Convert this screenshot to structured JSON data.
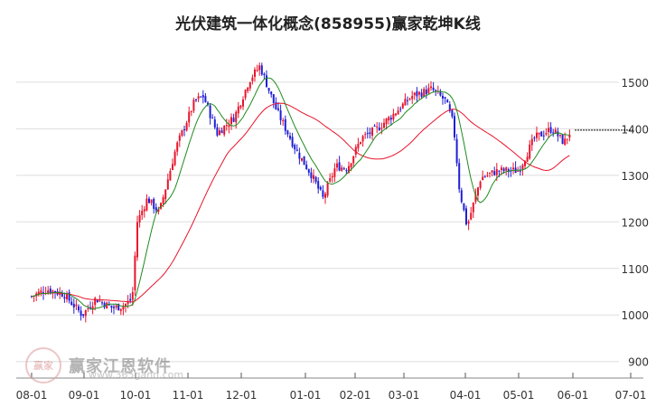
{
  "title": "光伏建筑一体化概念(858955)赢家乾坤K线",
  "watermark": {
    "name": "赢家江恩软件",
    "url": "www.365gann.com",
    "logo_text": "赢家"
  },
  "colors": {
    "up": "#e8142b",
    "down": "#1f1fd6",
    "ma_short": "#1f8a1f",
    "ma_long": "#e8142b",
    "grid": "#dddddd",
    "last_line": "#000000"
  },
  "chart_data": {
    "type": "candlestick",
    "title": "光伏建筑一体化概念(858955)赢家乾坤K线",
    "y_ticks": [
      900,
      1000,
      1100,
      1200,
      1300,
      1400,
      1500
    ],
    "ylim": [
      880,
      1560
    ],
    "x_ticks": [
      "08-01",
      "09-01",
      "10-01",
      "11-01",
      "12-01",
      "01-01",
      "02-01",
      "03-01",
      "04-01",
      "05-01",
      "06-01",
      "07-01"
    ],
    "last_price": 1397,
    "grid": true,
    "control_points": [
      [
        "08-01",
        1040
      ],
      [
        "08-10",
        1055
      ],
      [
        "08-20",
        1045
      ],
      [
        "08-31",
        1000
      ],
      [
        "09-08",
        1035
      ],
      [
        "09-18",
        1015
      ],
      [
        "09-25",
        1020
      ],
      [
        "09-30",
        1035
      ],
      [
        "10-02",
        1200
      ],
      [
        "10-08",
        1250
      ],
      [
        "10-15",
        1220
      ],
      [
        "10-25",
        1360
      ],
      [
        "11-05",
        1460
      ],
      [
        "11-10",
        1470
      ],
      [
        "11-18",
        1390
      ],
      [
        "11-28",
        1425
      ],
      [
        "12-05",
        1505
      ],
      [
        "12-10",
        1535
      ],
      [
        "12-18",
        1440
      ],
      [
        "12-28",
        1350
      ],
      [
        "01-05",
        1300
      ],
      [
        "01-12",
        1250
      ],
      [
        "01-20",
        1320
      ],
      [
        "01-27",
        1315
      ],
      [
        "02-05",
        1380
      ],
      [
        "02-15",
        1400
      ],
      [
        "02-25",
        1430
      ],
      [
        "03-05",
        1470
      ],
      [
        "03-15",
        1485
      ],
      [
        "03-22",
        1460
      ],
      [
        "03-26",
        1410
      ],
      [
        "03-29",
        1270
      ],
      [
        "04-02",
        1190
      ],
      [
        "04-10",
        1295
      ],
      [
        "04-20",
        1310
      ],
      [
        "05-01",
        1310
      ],
      [
        "05-10",
        1380
      ],
      [
        "05-20",
        1400
      ],
      [
        "05-27",
        1370
      ],
      [
        "05-31",
        1397
      ]
    ],
    "series": [
      {
        "name": "",
        "kind": "ma_short",
        "period": 5
      },
      {
        "name": "",
        "kind": "ma_long",
        "period": 20
      }
    ]
  }
}
